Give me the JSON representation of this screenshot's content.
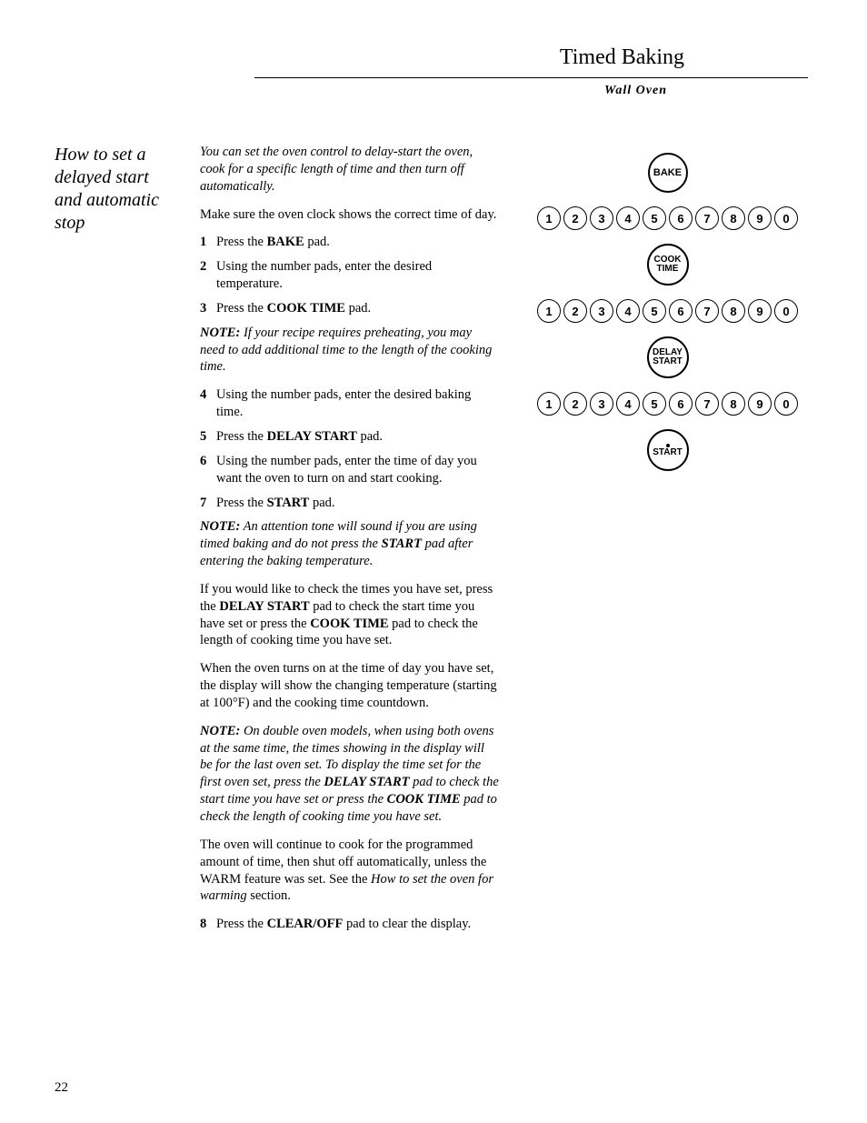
{
  "header": {
    "title": "Timed Baking",
    "subtitle": "Wall Oven"
  },
  "sidebar": {
    "heading": "How to set a delayed start and automatic stop"
  },
  "body": {
    "intro": "You can set the oven control to delay-start the oven, cook for a specific length of time and then turn off automatically.",
    "clock_note": "Make sure the oven clock shows the correct time of day.",
    "steps": {
      "1": {
        "prefix": "Press the ",
        "bold": "BAKE",
        "suffix": " pad."
      },
      "2": {
        "text": "Using the number pads, enter the desired temperature."
      },
      "3": {
        "prefix": "Press the ",
        "bold": "COOK TIME",
        "suffix": " pad."
      }
    },
    "note1": {
      "label": "NOTE:",
      "text": " If your recipe requires preheating, you may need to add additional time to the length of the cooking time."
    },
    "steps2": {
      "4": {
        "text": "Using the number pads, enter the desired baking time."
      },
      "5": {
        "prefix": "Press the ",
        "bold": "DELAY START",
        "suffix": " pad."
      },
      "6": {
        "text": "Using the number pads, enter the time of day you want the oven to turn on and start cooking."
      },
      "7": {
        "prefix": "Press the ",
        "bold": "START",
        "suffix": " pad."
      }
    },
    "note2": {
      "label": "NOTE:",
      "text1": " An attention tone will sound if you are using timed baking and do not press the ",
      "bold": "START",
      "text2": " pad after entering the baking temperature."
    },
    "para_check": {
      "t1": "If you would like to check the times you have set, press the ",
      "b1": "DELAY START",
      "t2": " pad to check the start time you have set or press the ",
      "b2": "COOK TIME",
      "t3": " pad to check the length of cooking time you have set."
    },
    "para_on": "When the oven turns on at the time of day you have set, the display will show the changing temperature (starting at 100°F) and the cooking time countdown.",
    "note3": {
      "label": "NOTE:",
      "t1": " On double oven models, when using both ovens at the same time, the times showing in the display will be for the last oven set. To display the time set for the first oven set, press the ",
      "b1": "DELAY START",
      "t2": " pad to check the start time you have set or press the ",
      "b2": "COOK TIME",
      "t3": " pad to check the length of cooking time you have set."
    },
    "para_cont": {
      "t1": "The oven will continue to cook for the programmed amount of time, then shut off automatically, unless the WARM feature was set. See the ",
      "it": "How to set the oven for warming",
      "t2": " section."
    },
    "steps3": {
      "8": {
        "prefix": "Press the ",
        "bold": "CLEAR/OFF",
        "suffix": " pad to clear the display."
      }
    }
  },
  "diagram": {
    "buttons": [
      "BAKE",
      "COOK TIME",
      "DELAY START",
      "START"
    ],
    "numbers": [
      "1",
      "2",
      "3",
      "4",
      "5",
      "6",
      "7",
      "8",
      "9",
      "0"
    ]
  },
  "page_number": "22",
  "style": {
    "bg": "#ffffff",
    "fg": "#000000",
    "body_font": "Times New Roman",
    "diagram_font": "Arial",
    "title_fontsize": 24,
    "body_fontsize": 14.5,
    "sidebar_fontsize": 20,
    "btn_diameter": 42,
    "num_diameter": 24
  }
}
